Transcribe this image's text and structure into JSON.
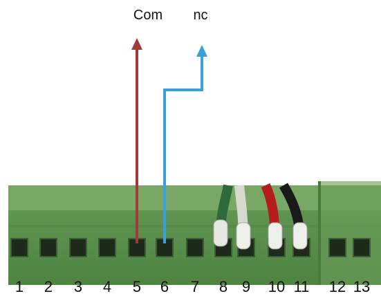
{
  "labels": {
    "com": "Com",
    "nc": "nc"
  },
  "terminals": [
    "1",
    "2",
    "3",
    "4",
    "5",
    "6",
    "7",
    "8",
    "9",
    "10",
    "11",
    "12",
    "13"
  ]
}
